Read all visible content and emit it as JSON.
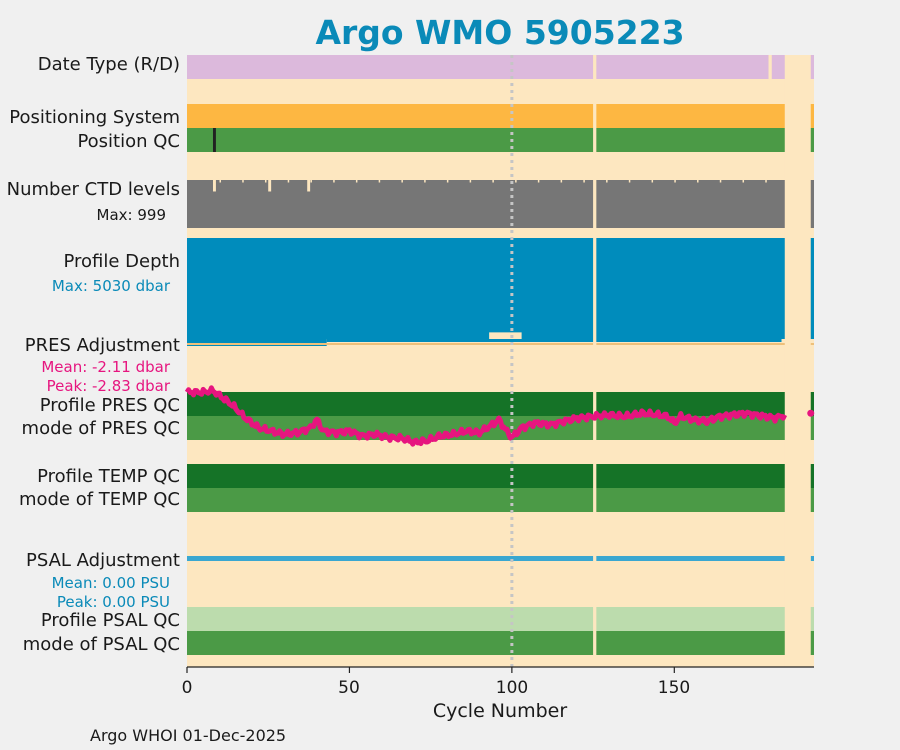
{
  "chart_data": {
    "type": "heatmap",
    "title": "Argo WMO 5905223",
    "xlabel": "Cycle Number",
    "xlim": [
      0,
      193
    ],
    "xticks": [
      0,
      50,
      100,
      150
    ],
    "x_tick_labels": [
      "0",
      "50",
      "100",
      "150"
    ],
    "reference_line_x": 100,
    "missing_cycles": [
      125,
      184,
      185,
      186,
      187,
      188,
      189,
      190,
      191
    ],
    "rows": [
      {
        "label": "Date Type (R/D)",
        "color": "#dcb9dc",
        "gaps": [
          179
        ]
      },
      {
        "label": "Positioning System",
        "color": "#fdb742"
      },
      {
        "label": "Position QC",
        "color": "#4b9a46",
        "marks": [
          {
            "cycle": 8,
            "color": "#222222"
          }
        ]
      },
      {
        "label": "Number CTD levels",
        "sublabel": "Max: 999",
        "color": "#767676",
        "max_value": 999
      },
      {
        "label": "Profile Depth",
        "sublabel": "Max: 5030 dbar",
        "color": "#008cbc",
        "max_value": 5030,
        "unit": "dbar"
      },
      {
        "label": "PRES Adjustment",
        "sublabel_mean": "Mean: -2.11 dbar",
        "sublabel_peak": "Peak: -2.83 dbar",
        "mean": -2.11,
        "peak": -2.83,
        "unit": "dbar"
      },
      {
        "label": "Profile PRES QC",
        "color": "#157327"
      },
      {
        "label": "mode of PRES QC",
        "color": "#4b9a46"
      },
      {
        "label": "Profile TEMP QC",
        "color": "#157327"
      },
      {
        "label": "mode of TEMP QC",
        "color": "#4b9a46"
      },
      {
        "label": "PSAL Adjustment",
        "sublabel_mean": "Mean: 0.00 PSU",
        "sublabel_peak": "Peak: 0.00 PSU",
        "mean": 0.0,
        "peak": 0.0,
        "unit": "PSU",
        "color": "#3aa7d0"
      },
      {
        "label": "Profile PSAL QC",
        "color": "#bcdcad"
      },
      {
        "label": "mode of PSAL QC",
        "color": "#4b9a46"
      }
    ],
    "ctd_dips": [
      {
        "cycle": 8,
        "value": 760
      },
      {
        "cycle": 25,
        "value": 760
      },
      {
        "cycle": 37,
        "value": 760
      },
      {
        "cycle": 191,
        "value": 600
      }
    ],
    "depth_bumps": [
      {
        "from": 93,
        "to": 103,
        "value": 4700
      }
    ],
    "pres_adjustment_series_description": "pink line overlaid on PRES QC rows",
    "pres_adjustment_points": [
      [
        0,
        -1.2
      ],
      [
        5,
        -1.2
      ],
      [
        8,
        -1.15
      ],
      [
        10,
        -1.3
      ],
      [
        14,
        -1.6
      ],
      [
        18,
        -2.0
      ],
      [
        22,
        -2.3
      ],
      [
        26,
        -2.4
      ],
      [
        30,
        -2.5
      ],
      [
        34,
        -2.45
      ],
      [
        38,
        -2.3
      ],
      [
        40,
        -2.05
      ],
      [
        42,
        -2.4
      ],
      [
        46,
        -2.45
      ],
      [
        50,
        -2.4
      ],
      [
        54,
        -2.55
      ],
      [
        58,
        -2.5
      ],
      [
        62,
        -2.6
      ],
      [
        66,
        -2.62
      ],
      [
        70,
        -2.75
      ],
      [
        74,
        -2.7
      ],
      [
        78,
        -2.55
      ],
      [
        82,
        -2.5
      ],
      [
        86,
        -2.4
      ],
      [
        90,
        -2.45
      ],
      [
        94,
        -2.2
      ],
      [
        96,
        -2.05
      ],
      [
        98,
        -2.35
      ],
      [
        100,
        -2.6
      ],
      [
        103,
        -2.3
      ],
      [
        107,
        -2.15
      ],
      [
        112,
        -2.2
      ],
      [
        116,
        -2.1
      ],
      [
        120,
        -2.0
      ],
      [
        125,
        -1.95
      ],
      [
        130,
        -1.9
      ],
      [
        135,
        -1.95
      ],
      [
        140,
        -1.85
      ],
      [
        145,
        -1.9
      ],
      [
        148,
        -1.95
      ],
      [
        150,
        -2.15
      ],
      [
        152,
        -1.95
      ],
      [
        156,
        -2.05
      ],
      [
        160,
        -2.1
      ],
      [
        164,
        -1.95
      ],
      [
        168,
        -1.9
      ],
      [
        172,
        -1.85
      ],
      [
        175,
        -1.9
      ],
      [
        178,
        -1.95
      ],
      [
        181,
        -2.0
      ],
      [
        184,
        -1.9
      ]
    ],
    "pres_adjustment_last_point": [
      192,
      -1.85
    ]
  },
  "footer": {
    "text": "Argo WHOI 01-Dec-2025"
  },
  "colors": {
    "title": "#0a8ab8",
    "background": "#f0f0f0",
    "panel": "#fde7c0",
    "pres_line": "#e6157f",
    "sub_blue": "#0a8ab8",
    "sub_pink": "#e6157f",
    "ref_line": "#c5c5c5",
    "pres_adj_base": "#eec07a"
  }
}
